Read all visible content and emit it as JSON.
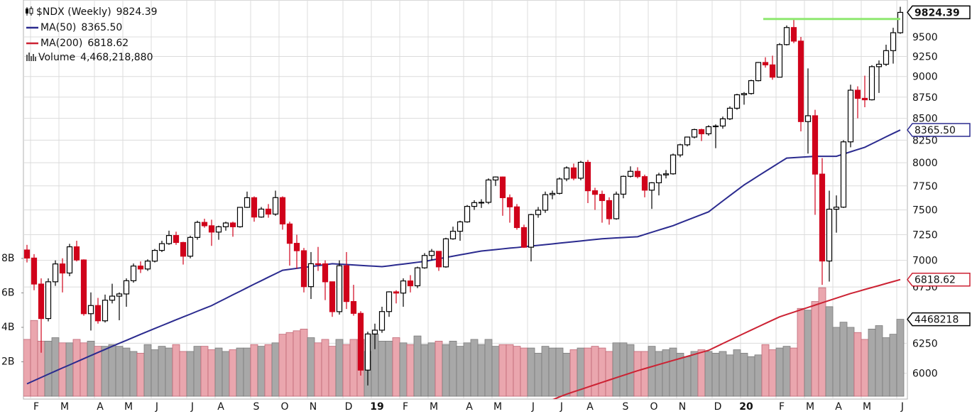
{
  "chart_data": {
    "type": "candlestick",
    "title": "$NDX (Weekly)",
    "categories": [
      null,
      "F",
      null,
      null,
      null,
      "M",
      null,
      null,
      null,
      null,
      "A",
      null,
      null,
      null,
      "M",
      null,
      null,
      null,
      "J",
      null,
      null,
      null,
      null,
      "J",
      null,
      null,
      null,
      "A",
      null,
      null,
      null,
      null,
      "S",
      null,
      null,
      null,
      "O",
      null,
      null,
      null,
      "N",
      null,
      null,
      null,
      null,
      "D",
      null,
      null,
      null,
      "19",
      null,
      null,
      null,
      "F",
      null,
      null,
      null,
      "M",
      null,
      null,
      null,
      null,
      "A",
      null,
      null,
      null,
      "M",
      null,
      null,
      null,
      null,
      "J",
      null,
      null,
      null,
      "J",
      null,
      null,
      null,
      "A",
      null,
      null,
      null,
      null,
      "S",
      null,
      null,
      null,
      "O",
      null,
      null,
      null,
      "N",
      null,
      null,
      null,
      null,
      "D",
      null,
      null,
      null,
      "20",
      null,
      null,
      null,
      null,
      "F",
      null,
      null,
      null,
      "M",
      null,
      null,
      null,
      "A",
      null,
      null,
      null,
      "M",
      null,
      null,
      null,
      null,
      "J"
    ],
    "open": [
      7100,
      7022,
      6777,
      6465,
      6798,
      6966,
      6880,
      7131,
      7004,
      6508,
      6581,
      6445,
      6629,
      6666,
      6686,
      6808,
      6946,
      6918,
      6993,
      7096,
      7162,
      7242,
      7173,
      7040,
      7223,
      7373,
      7339,
      7276,
      7329,
      7367,
      7329,
      7526,
      7626,
      7427,
      7508,
      7457,
      7627,
      7357,
      7165,
      7093,
      6753,
      6968,
      6967,
      6798,
      6526,
      6949,
      6617,
      6511,
      6025,
      6330,
      6363,
      6527,
      6705,
      6694,
      6806,
      6761,
      6929,
      7047,
      7087,
      6938,
      7209,
      7284,
      7378,
      7536,
      7575,
      7578,
      7813,
      7845,
      7626,
      7531,
      7321,
      7127,
      7452,
      7497,
      7658,
      7671,
      7824,
      7943,
      7832,
      8004,
      7699,
      7661,
      7596,
      7410,
      7663,
      7852,
      7906,
      7849,
      7705,
      7783,
      7867,
      7879,
      8085,
      8198,
      8285,
      8370,
      8322,
      8403,
      8411,
      8494,
      8618,
      8778,
      8793,
      8949,
      9174,
      9144,
      8992,
      9401,
      9623,
      9446,
      8462,
      8530,
      7876,
      6994,
      7507,
      7528,
      8231,
      8833,
      8735,
      8718,
      9122,
      9152,
      9324,
      9555
    ],
    "high": [
      7150,
      7060,
      6830,
      6830,
      7000,
      7020,
      7160,
      7190,
      7010,
      6700,
      6650,
      6680,
      6780,
      6700,
      6830,
      6970,
      6990,
      7010,
      7110,
      7190,
      7290,
      7280,
      7180,
      7240,
      7390,
      7410,
      7400,
      7340,
      7380,
      7380,
      7530,
      7690,
      7640,
      7530,
      7560,
      7700,
      7640,
      7380,
      7250,
      7120,
      7080,
      7130,
      7000,
      6800,
      7000,
      7080,
      6770,
      6530,
      6350,
      6420,
      6570,
      6710,
      6720,
      6830,
      6860,
      6940,
      7070,
      7110,
      7090,
      7220,
      7330,
      7390,
      7550,
      7600,
      7610,
      7830,
      7850,
      7850,
      7660,
      7560,
      7350,
      7460,
      7530,
      7690,
      7700,
      7840,
      7960,
      7990,
      8020,
      8030,
      7730,
      7700,
      7630,
      7690,
      7860,
      7960,
      7950,
      7870,
      7790,
      7890,
      7920,
      8100,
      8210,
      8290,
      8380,
      8380,
      8420,
      8430,
      8520,
      8640,
      8790,
      8810,
      8960,
      9180,
      9240,
      9260,
      9420,
      9650,
      9740,
      9500,
      9100,
      8600,
      8050,
      7700,
      7650,
      8250,
      8900,
      8880,
      9010,
      9140,
      9200,
      9400,
      9620,
      9900
    ],
    "low": [
      6980,
      6720,
      6170,
      6440,
      6760,
      6700,
      6850,
      6990,
      6490,
      6360,
      6420,
      6430,
      6600,
      6450,
      6570,
      6790,
      6880,
      6900,
      6980,
      7080,
      7150,
      7150,
      6960,
      7020,
      7200,
      7320,
      7140,
      7200,
      7290,
      7230,
      7320,
      7520,
      7380,
      7420,
      7420,
      7440,
      7300,
      6950,
      6920,
      6700,
      6640,
      6900,
      6630,
      6480,
      6500,
      6550,
      6490,
      5980,
      5900,
      6200,
      6340,
      6480,
      6600,
      6570,
      6700,
      6740,
      6920,
      7000,
      6900,
      6930,
      7200,
      7190,
      7370,
      7500,
      7520,
      7560,
      7750,
      7440,
      7370,
      7300,
      7120,
      6990,
      7420,
      7470,
      7610,
      7660,
      7800,
      7810,
      7810,
      7570,
      7500,
      7370,
      7350,
      7400,
      7620,
      7840,
      7830,
      7630,
      7510,
      7650,
      7830,
      7870,
      8060,
      8180,
      8270,
      8240,
      8300,
      8160,
      8380,
      8480,
      8600,
      8660,
      8780,
      8940,
      9110,
      8960,
      8990,
      9390,
      9420,
      8350,
      8100,
      7450,
      6770,
      6800,
      7270,
      7520,
      8170,
      8500,
      8630,
      8710,
      8800,
      9130,
      9160,
      9540
    ],
    "close": [
      7022,
      6777,
      6465,
      6798,
      6966,
      6880,
      7131,
      7004,
      6508,
      6581,
      6445,
      6629,
      6666,
      6686,
      6808,
      6946,
      6918,
      6993,
      7096,
      7162,
      7242,
      7173,
      7040,
      7223,
      7373,
      7339,
      7276,
      7329,
      7367,
      7329,
      7526,
      7626,
      7427,
      7508,
      7457,
      7627,
      7357,
      7165,
      7093,
      6753,
      6968,
      6967,
      6798,
      6526,
      6949,
      6617,
      6511,
      6025,
      6330,
      6363,
      6527,
      6705,
      6694,
      6806,
      6761,
      6929,
      7047,
      7087,
      6938,
      7209,
      7284,
      7378,
      7536,
      7575,
      7578,
      7813,
      7845,
      7626,
      7531,
      7321,
      7127,
      7452,
      7497,
      7658,
      7671,
      7824,
      7943,
      7832,
      8004,
      7699,
      7661,
      7596,
      7410,
      7663,
      7852,
      7906,
      7849,
      7705,
      7783,
      7867,
      7879,
      8085,
      8198,
      8285,
      8370,
      8322,
      8403,
      8411,
      8494,
      8618,
      8778,
      8793,
      8949,
      9174,
      9144,
      8992,
      9401,
      9623,
      9446,
      8462,
      8530,
      7876,
      6994,
      7507,
      7528,
      8231,
      8833,
      8735,
      8718,
      9122,
      9152,
      9324,
      9555,
      9824.39
    ],
    "up_color": "#000000",
    "down_color": "#d0021b",
    "log_scale": true,
    "grid": true,
    "ylim": [
      5791,
      9992
    ],
    "yticks": [
      6000,
      6250,
      6750,
      7000,
      7250,
      7500,
      7750,
      8000,
      8250,
      8500,
      8750,
      9000,
      9250,
      9500
    ],
    "reference_line": {
      "value": 9736,
      "color": "#8fe870"
    },
    "series": [
      {
        "name": "MA(50)",
        "color": "#2b2b8f",
        "value_label": "8365.50",
        "values": [
          5913,
          5939,
          5965,
          5991,
          6017,
          6043,
          6068,
          6094,
          6120,
          6146,
          6172,
          6198,
          6224,
          6250,
          6275,
          6301,
          6327,
          6352,
          6378,
          6403,
          6428,
          6454,
          6479,
          6504,
          6530,
          6555,
          6580,
          6613,
          6645,
          6678,
          6710,
          6743,
          6776,
          6808,
          6841,
          6873,
          6906,
          6915,
          6924,
          6933,
          6941,
          6950,
          6959,
          6968,
          6964,
          6960,
          6956,
          6952,
          6948,
          6944,
          6940,
          6948,
          6957,
          6965,
          6973,
          6982,
          6990,
          7003,
          7015,
          7028,
          7040,
          7053,
          7065,
          7078,
          7090,
          7097,
          7104,
          7111,
          7118,
          7124,
          7131,
          7138,
          7145,
          7152,
          7159,
          7167,
          7174,
          7181,
          7188,
          7196,
          7203,
          7210,
          7214,
          7218,
          7222,
          7226,
          7230,
          7252,
          7274,
          7296,
          7318,
          7340,
          7368,
          7396,
          7424,
          7452,
          7480,
          7536,
          7592,
          7648,
          7704,
          7760,
          7808,
          7857,
          7905,
          7953,
          8002,
          8050,
          8055,
          8060,
          8065,
          8070,
          8070,
          8070,
          8070,
          8095,
          8120,
          8145,
          8170,
          8209,
          8248,
          8288,
          8327,
          8365.5
        ]
      },
      {
        "name": "MA(200)",
        "color": "#cc2233",
        "value_label": "6818.62",
        "values": [
          null,
          null,
          null,
          null,
          null,
          null,
          null,
          null,
          null,
          null,
          null,
          null,
          null,
          null,
          null,
          null,
          null,
          null,
          null,
          null,
          null,
          null,
          null,
          null,
          null,
          null,
          null,
          null,
          null,
          null,
          null,
          null,
          null,
          null,
          null,
          null,
          null,
          null,
          null,
          null,
          null,
          null,
          null,
          null,
          null,
          null,
          null,
          null,
          null,
          null,
          null,
          null,
          null,
          null,
          null,
          null,
          null,
          null,
          null,
          null,
          null,
          null,
          null,
          null,
          null,
          null,
          null,
          null,
          null,
          null,
          null,
          null,
          5740,
          5763,
          5785,
          5808,
          5830,
          5849,
          5868,
          5887,
          5906,
          5925,
          5944,
          5963,
          5982,
          6001,
          6020,
          6037,
          6054,
          6071,
          6088,
          6105,
          6122,
          6139,
          6156,
          6173,
          6190,
          6219,
          6248,
          6277,
          6306,
          6335,
          6364,
          6393,
          6422,
          6451,
          6480,
          6501,
          6522,
          6543,
          6564,
          6585,
          6606,
          6627,
          6648,
          6669,
          6690,
          6708,
          6727,
          6745,
          6763,
          6782,
          6800,
          6818.62
        ]
      }
    ],
    "volume": {
      "name": "Volume",
      "value_label": "4,468,218,880",
      "axis_label": "4468218",
      "up_color": "#a8a8a8",
      "down_color": "#eaa6ae",
      "ylim": [
        0,
        23000000000.0
      ],
      "yticks": [
        {
          "value": 2000000000.0,
          "label": "2B"
        },
        {
          "value": 4000000000.0,
          "label": "4B"
        },
        {
          "value": 6000000000.0,
          "label": "6B"
        },
        {
          "value": 8000000000.0,
          "label": "8B"
        }
      ],
      "values": [
        3300000000.0,
        4400000000.0,
        3200000000.0,
        3200000000.0,
        3400000000.0,
        3100000000.0,
        3100000000.0,
        3300000000.0,
        3100000000.0,
        3200000000.0,
        2900000000.0,
        2900000000.0,
        3000000000.0,
        2900000000.0,
        2800000000.0,
        2600000000.0,
        2500000000.0,
        3000000000.0,
        2700000000.0,
        2900000000.0,
        2800000000.0,
        3000000000.0,
        2600000000.0,
        2600000000.0,
        2900000000.0,
        2900000000.0,
        2700000000.0,
        2800000000.0,
        2600000000.0,
        2700000000.0,
        2800000000.0,
        2800000000.0,
        3000000000.0,
        2900000000.0,
        3000000000.0,
        3100000000.0,
        3600000000.0,
        3700000000.0,
        3800000000.0,
        3900000000.0,
        3400000000.0,
        3100000000.0,
        3300000000.0,
        2900000000.0,
        3300000000.0,
        3000000000.0,
        3300000000.0,
        3300000000.0,
        2600000000.0,
        3600000000.0,
        3200000000.0,
        3200000000.0,
        3400000000.0,
        3100000000.0,
        3000000000.0,
        3500000000.0,
        3000000000.0,
        3100000000.0,
        3200000000.0,
        3000000000.0,
        3200000000.0,
        2900000000.0,
        3100000000.0,
        3300000000.0,
        3000000000.0,
        3300000000.0,
        2900000000.0,
        3000000000.0,
        3000000000.0,
        2900000000.0,
        2800000000.0,
        2800000000.0,
        2500000000.0,
        2900000000.0,
        2800000000.0,
        2800000000.0,
        2500000000.0,
        2700000000.0,
        2800000000.0,
        2800000000.0,
        2900000000.0,
        2800000000.0,
        2600000000.0,
        3100000000.0,
        3100000000.0,
        3000000000.0,
        2600000000.0,
        2600000000.0,
        2900000000.0,
        2600000000.0,
        2700000000.0,
        2800000000.0,
        2500000000.0,
        2300000000.0,
        2600000000.0,
        2700000000.0,
        2600000000.0,
        2500000000.0,
        2600000000.0,
        2400000000.0,
        2700000000.0,
        2500000000.0,
        2300000000.0,
        2400000000.0,
        3000000000.0,
        2700000000.0,
        2800000000.0,
        2900000000.0,
        2800000000.0,
        5100000000.0,
        5000000000.0,
        5500000000.0,
        6300000000.0,
        5200000000.0,
        4000000000.0,
        4300000000.0,
        4000000000.0,
        3700000000.0,
        3300000000.0,
        3900000000.0,
        4100000000.0,
        3400000000.0,
        3600000000.0,
        4468218880
      ]
    }
  }
}
